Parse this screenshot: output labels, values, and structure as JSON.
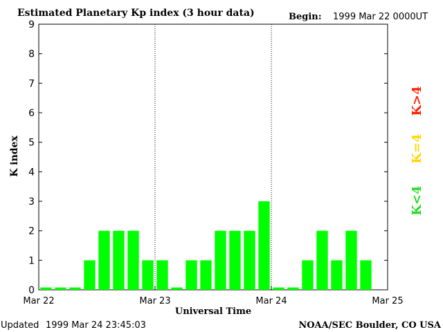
{
  "chart_data": {
    "type": "bar",
    "title": "Estimated Planetary Kp index (3 hour data)",
    "begin_label": "Begin:",
    "begin_value": "1999 Mar 22 0000UT",
    "ylabel": "K index",
    "xlabel": "Universal Time",
    "ylim": [
      0,
      9
    ],
    "y_ticks": [
      "0",
      "1",
      "2",
      "3",
      "4",
      "5",
      "6",
      "7",
      "8",
      "9"
    ],
    "x_ticks": [
      "Mar 22",
      "Mar 23",
      "Mar 24",
      "Mar 25"
    ],
    "day_separators_after_bar": [
      8,
      16
    ],
    "values": [
      0,
      0,
      0,
      1,
      2,
      2,
      2,
      1,
      1,
      0,
      1,
      1,
      2,
      2,
      2,
      3,
      0,
      0,
      1,
      2,
      1,
      2,
      1,
      null
    ],
    "bar_color": "#00ff00",
    "legend": [
      {
        "label": "K<4",
        "color": "#22dd22"
      },
      {
        "label": "K=4",
        "color": "#ffd700"
      },
      {
        "label": "K>4",
        "color": "#ff2200"
      }
    ],
    "grid": false
  },
  "footer": {
    "updated_label": "Updated",
    "updated_value": "1999 Mar 24 23:45:03",
    "source": "NOAA/SEC Boulder, CO USA"
  }
}
